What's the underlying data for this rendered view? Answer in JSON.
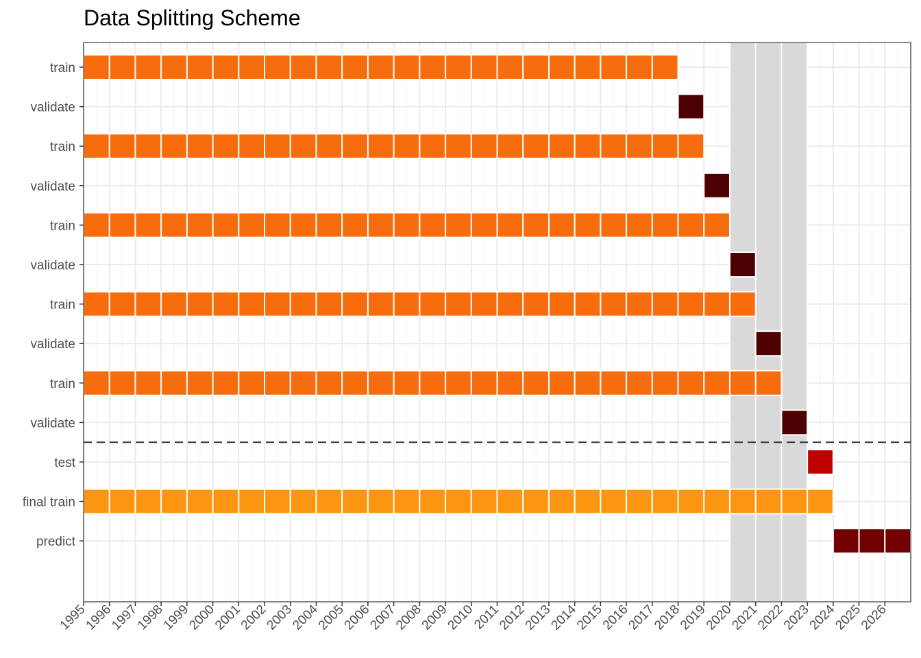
{
  "chart_data": {
    "type": "heatmap",
    "title": "Data Splitting Scheme",
    "xlabel": "",
    "ylabel": "",
    "x_ticks": [
      1995,
      1996,
      1997,
      1998,
      1999,
      2000,
      2001,
      2002,
      2003,
      2004,
      2005,
      2006,
      2007,
      2008,
      2009,
      2010,
      2011,
      2012,
      2013,
      2014,
      2015,
      2016,
      2017,
      2018,
      2019,
      2020,
      2021,
      2022,
      2023,
      2024,
      2025,
      2026
    ],
    "xlim": [
      1995,
      2027
    ],
    "grid": true,
    "legend": "none",
    "shaded_years": [
      2020,
      2021,
      2022
    ],
    "separator_after_row": 10,
    "colors": {
      "train": "#f76c0d",
      "validate": "#4d0000",
      "test": "#bf0000",
      "final train": "#fc950f",
      "predict": "#730000",
      "shade": "#d9d9d9"
    },
    "rows": [
      {
        "label": "train",
        "role": "train",
        "years": [
          1995,
          2017
        ]
      },
      {
        "label": "validate",
        "role": "validate",
        "years": [
          2018,
          2018
        ]
      },
      {
        "label": "train",
        "role": "train",
        "years": [
          1995,
          2018
        ]
      },
      {
        "label": "validate",
        "role": "validate",
        "years": [
          2019,
          2019
        ]
      },
      {
        "label": "train",
        "role": "train",
        "years": [
          1995,
          2019
        ]
      },
      {
        "label": "validate",
        "role": "validate",
        "years": [
          2020,
          2020
        ]
      },
      {
        "label": "train",
        "role": "train",
        "years": [
          1995,
          2020
        ]
      },
      {
        "label": "validate",
        "role": "validate",
        "years": [
          2021,
          2021
        ]
      },
      {
        "label": "train",
        "role": "train",
        "years": [
          1995,
          2021
        ]
      },
      {
        "label": "validate",
        "role": "validate",
        "years": [
          2022,
          2022
        ]
      },
      {
        "label": "test",
        "role": "test",
        "years": [
          2023,
          2023
        ]
      },
      {
        "label": "final train",
        "role": "final train",
        "years": [
          1995,
          2023
        ]
      },
      {
        "label": "predict",
        "role": "predict",
        "years": [
          2024,
          2026
        ]
      }
    ]
  }
}
